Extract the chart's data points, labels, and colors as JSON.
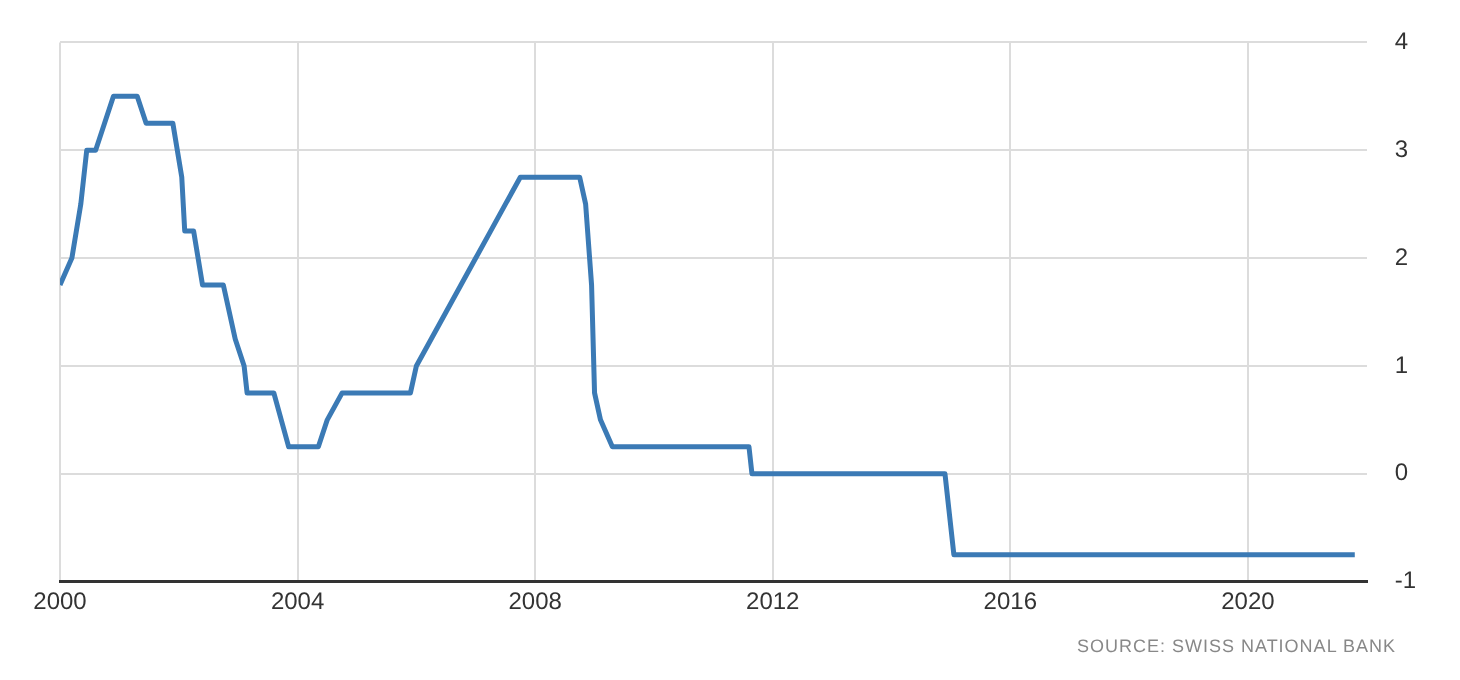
{
  "chart_data": {
    "type": "line",
    "annotations": [
      "SOURCE: SWISS NATIONAL BANK"
    ],
    "series": [
      {
        "color": "#3b7ab5",
        "x": [
          2000.0,
          2000.2,
          2000.35,
          2000.45,
          2000.6,
          2000.75,
          2000.9,
          2001.3,
          2001.45,
          2001.9,
          2002.05,
          2002.1,
          2002.25,
          2002.4,
          2002.75,
          2002.95,
          2003.1,
          2003.15,
          2003.6,
          2003.85,
          2004.35,
          2004.5,
          2004.75,
          2005.9,
          2006.0,
          2006.25,
          2006.5,
          2006.75,
          2007.0,
          2007.25,
          2007.5,
          2007.75,
          2008.75,
          2008.85,
          2008.95,
          2009.0,
          2009.1,
          2009.3,
          2011.6,
          2011.65,
          2014.9,
          2015.05,
          2021.8
        ],
        "values": [
          1.75,
          2.0,
          2.5,
          3.0,
          3.0,
          3.25,
          3.5,
          3.5,
          3.25,
          3.25,
          2.75,
          2.25,
          2.25,
          1.75,
          1.75,
          1.25,
          1.0,
          0.75,
          0.75,
          0.25,
          0.25,
          0.5,
          0.75,
          0.75,
          1.0,
          1.25,
          1.5,
          1.75,
          2.0,
          2.25,
          2.5,
          2.75,
          2.75,
          2.5,
          1.75,
          0.75,
          0.5,
          0.25,
          0.25,
          0.0,
          0.0,
          -0.75,
          -0.75
        ]
      }
    ],
    "xlim": [
      2000,
      2022
    ],
    "xticks": [
      2000,
      2004,
      2008,
      2012,
      2016,
      2020
    ],
    "ylim": [
      -1,
      4
    ],
    "yticks": [
      -1,
      0,
      1,
      2,
      3,
      4
    ],
    "grid": true,
    "legend": false,
    "marker": "none",
    "line_style": "solid"
  }
}
